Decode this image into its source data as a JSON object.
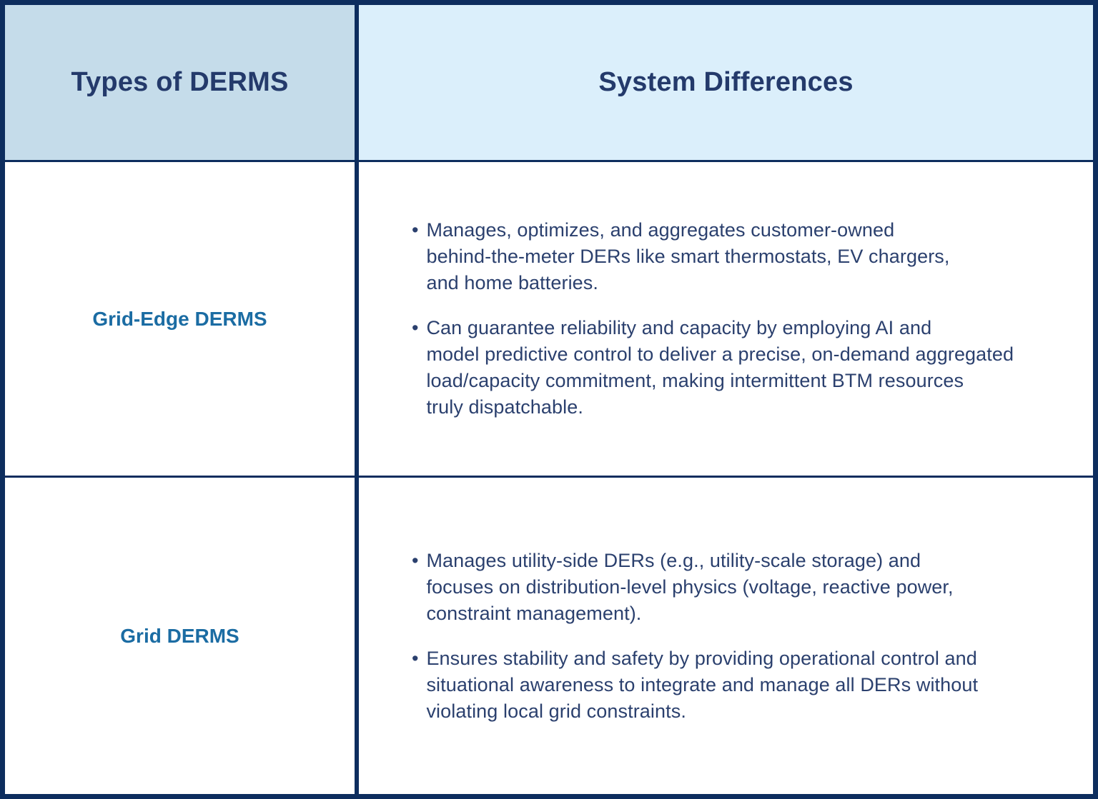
{
  "table": {
    "header": {
      "col1": "Types of DERMS",
      "col2": "System Differences"
    },
    "rows": [
      {
        "type": "Grid-Edge DERMS",
        "bullets": [
          "Manages, optimizes, and aggregates customer-owned\nbehind-the-meter DERs like smart thermostats, EV chargers,\nand home batteries.",
          "Can guarantee reliability and capacity by employing AI and\nmodel predictive control to deliver a precise, on-demand aggregated\nload/capacity commitment, making intermittent BTM resources\ntruly dispatchable."
        ]
      },
      {
        "type": "Grid DERMS",
        "bullets": [
          "Manages utility-side DERs (e.g., utility-scale storage) and\nfocuses on distribution-level physics (voltage, reactive power,\nconstraint management).",
          "Ensures stability and safety by providing operational control and\nsituational awareness to integrate and manage all DERs without\nviolating local grid constraints."
        ]
      }
    ]
  },
  "glyphs": {
    "bullet": "•"
  },
  "colors": {
    "border_navy": "#0d2d5e",
    "header_col1_bg": "#c5dcea",
    "header_col2_bg": "#dbeffb",
    "header_text": "#243a6b",
    "body_text": "#2b406e",
    "row_label_blue": "#1b6ca3",
    "cell_bg": "#ffffff"
  }
}
